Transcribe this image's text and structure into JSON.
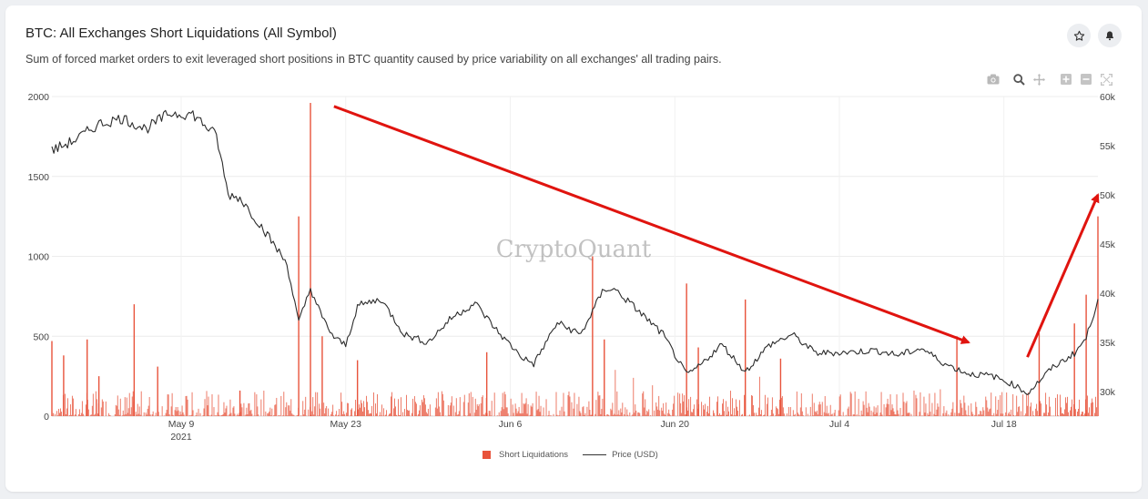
{
  "header": {
    "title": "BTC: All Exchanges Short Liquidations (All Symbol)",
    "subtitle": "Sum of forced market orders to exit leveraged short positions in BTC quantity caused by price variability on all exchanges' all trading pairs."
  },
  "icons": {
    "star": "star-icon",
    "bell": "bell-icon",
    "camera": "camera-icon",
    "zoom": "zoom-icon",
    "pan": "pan-icon",
    "zoom_in": "zoom-in-icon",
    "zoom_out": "zoom-out-icon",
    "reset": "autoscale-icon"
  },
  "watermark": "CryptoQuant",
  "colors": {
    "bars": "#e8533b",
    "price_line": "#2b2b2b",
    "annotation": "#e0140f"
  },
  "chart_data": {
    "type": "bar",
    "title": "BTC: All Exchanges Short Liquidations (All Symbol)",
    "x_range": [
      "2021-04-28",
      "2021-07-26"
    ],
    "x_ticks": [
      {
        "date": "2021-05-09",
        "label": "May 9",
        "sublabel": "2021"
      },
      {
        "date": "2021-05-23",
        "label": "May 23",
        "sublabel": ""
      },
      {
        "date": "2021-06-06",
        "label": "Jun 6",
        "sublabel": ""
      },
      {
        "date": "2021-06-20",
        "label": "Jun 20",
        "sublabel": ""
      },
      {
        "date": "2021-07-04",
        "label": "Jul 4",
        "sublabel": ""
      },
      {
        "date": "2021-07-18",
        "label": "Jul 18",
        "sublabel": ""
      }
    ],
    "y_left": {
      "range": [
        0,
        2000
      ],
      "ticks": [
        0,
        500,
        1000,
        1500,
        2000
      ],
      "tick_labels": [
        "0",
        "500",
        "1000",
        "1500",
        "2000"
      ]
    },
    "y_right": {
      "range": [
        27500,
        60000
      ],
      "ticks": [
        30000,
        35000,
        40000,
        45000,
        50000,
        55000,
        60000
      ],
      "tick_labels": [
        "30k",
        "35k",
        "40k",
        "45k",
        "50k",
        "55k",
        "60k"
      ]
    },
    "grid": true,
    "legend_position": "bottom-center",
    "series": [
      {
        "name": "Short Liquidations",
        "kind": "bar",
        "axis": "left",
        "x": [
          "2021-04-28",
          "2021-04-29",
          "2021-05-01",
          "2021-05-02",
          "2021-05-05",
          "2021-05-07",
          "2021-05-14",
          "2021-05-19",
          "2021-05-20",
          "2021-05-21",
          "2021-05-24",
          "2021-06-04",
          "2021-06-13",
          "2021-06-14",
          "2021-06-21",
          "2021-06-22",
          "2021-06-26",
          "2021-06-29",
          "2021-07-14",
          "2021-07-21",
          "2021-07-24",
          "2021-07-25",
          "2021-07-26"
        ],
        "values": [
          470,
          380,
          480,
          250,
          700,
          310,
          160,
          1250,
          1960,
          500,
          350,
          400,
          1000,
          480,
          830,
          430,
          730,
          360,
          500,
          520,
          580,
          760,
          1250
        ]
      },
      {
        "name": "Price (USD)",
        "kind": "line",
        "axis": "right",
        "x": [
          "2021-04-28",
          "2021-04-30",
          "2021-05-02",
          "2021-05-04",
          "2021-05-06",
          "2021-05-08",
          "2021-05-10",
          "2021-05-12",
          "2021-05-13",
          "2021-05-14",
          "2021-05-16",
          "2021-05-18",
          "2021-05-19",
          "2021-05-20",
          "2021-05-21",
          "2021-05-22",
          "2021-05-23",
          "2021-05-24",
          "2021-05-26",
          "2021-05-28",
          "2021-05-30",
          "2021-06-01",
          "2021-06-03",
          "2021-06-05",
          "2021-06-07",
          "2021-06-08",
          "2021-06-10",
          "2021-06-12",
          "2021-06-14",
          "2021-06-15",
          "2021-06-17",
          "2021-06-19",
          "2021-06-21",
          "2021-06-22",
          "2021-06-24",
          "2021-06-26",
          "2021-06-28",
          "2021-06-30",
          "2021-07-02",
          "2021-07-05",
          "2021-07-07",
          "2021-07-09",
          "2021-07-11",
          "2021-07-13",
          "2021-07-15",
          "2021-07-17",
          "2021-07-19",
          "2021-07-20",
          "2021-07-22",
          "2021-07-24",
          "2021-07-25",
          "2021-07-26"
        ],
        "values": [
          54500,
          55600,
          57200,
          57800,
          56700,
          58300,
          58200,
          56000,
          50000,
          49700,
          46500,
          43000,
          37000,
          40500,
          37500,
          35500,
          34700,
          38700,
          39400,
          35800,
          35000,
          37500,
          39000,
          36000,
          33500,
          32800,
          37000,
          35800,
          40500,
          40300,
          38100,
          35800,
          31700,
          32500,
          34800,
          32000,
          34700,
          35800,
          33900,
          34000,
          34200,
          33700,
          34400,
          32800,
          31800,
          31600,
          30600,
          29800,
          32300,
          33900,
          35400,
          39400
        ]
      }
    ],
    "annotations": [
      {
        "type": "arrow",
        "direction": "down",
        "from": [
          "2021-05-22",
          59000
        ],
        "to": [
          "2021-07-15",
          35000
        ]
      },
      {
        "type": "arrow",
        "direction": "up",
        "from": [
          "2021-07-20",
          33500
        ],
        "to": [
          "2021-07-26",
          50000
        ]
      }
    ]
  },
  "legend": {
    "items": [
      "Short Liquidations",
      "Price (USD)"
    ]
  }
}
